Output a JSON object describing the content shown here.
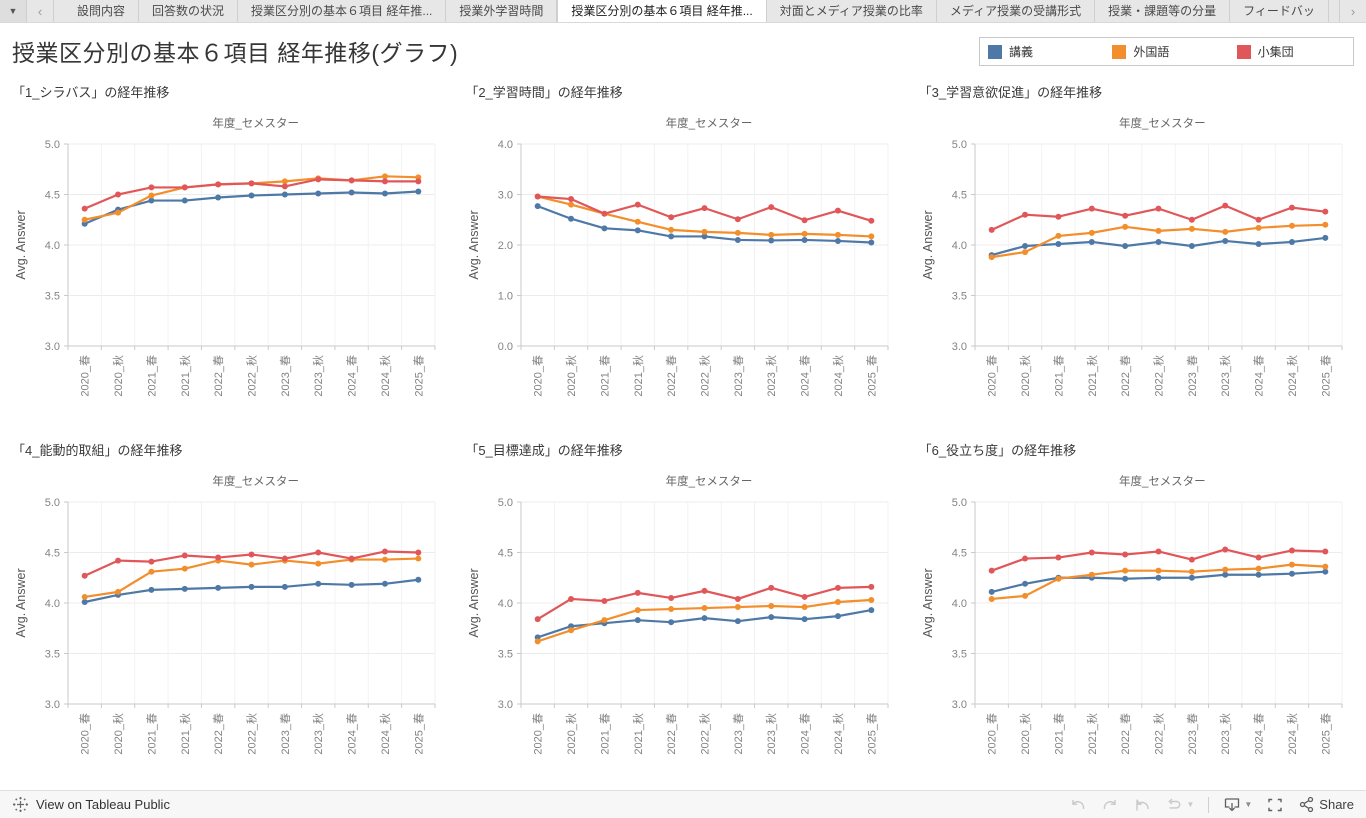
{
  "tab_bar": {
    "dropdown_icon": "▼",
    "prev_icon": "‹",
    "next_icon": "›",
    "tabs": [
      {
        "label": "設問内容",
        "active": false
      },
      {
        "label": "回答数の状況",
        "active": false
      },
      {
        "label": "授業区分別の基本６項目 経年推...",
        "active": false
      },
      {
        "label": "授業外学習時間",
        "active": false
      },
      {
        "label": "授業区分別の基本６項目 経年推...",
        "active": true
      },
      {
        "label": "対面とメディア授業の比率",
        "active": false
      },
      {
        "label": "メディア授業の受講形式",
        "active": false
      },
      {
        "label": "授業・課題等の分量",
        "active": false
      },
      {
        "label": "フィードバッ",
        "active": false
      }
    ]
  },
  "header": {
    "title": "授業区分別の基本６項目 経年推移(グラフ)"
  },
  "legend": {
    "items": [
      {
        "label": "講義",
        "color": "#4e79a7"
      },
      {
        "label": "外国語",
        "color": "#f28e2b"
      },
      {
        "label": "小集団",
        "color": "#e15759"
      }
    ]
  },
  "chart_data": [
    {
      "type": "line",
      "title": "「1_シラバス」の経年推移",
      "xlabel": "年度_セメスター",
      "ylabel": "Avg. Answer",
      "ylim": [
        3.0,
        5.0
      ],
      "yticks": [
        3.0,
        3.5,
        4.0,
        4.5,
        5.0
      ],
      "grid": true,
      "categories": [
        "2020_春",
        "2020_秋",
        "2021_春",
        "2021_秋",
        "2022_春",
        "2022_秋",
        "2023_春",
        "2023_秋",
        "2024_春",
        "2024_秋",
        "2025_春"
      ],
      "series": [
        {
          "name": "講義",
          "color": "#4e79a7",
          "values": [
            4.21,
            4.35,
            4.44,
            4.44,
            4.47,
            4.49,
            4.5,
            4.51,
            4.52,
            4.51,
            4.53
          ]
        },
        {
          "name": "外国語",
          "color": "#f28e2b",
          "values": [
            4.25,
            4.32,
            4.49,
            4.57,
            4.6,
            4.61,
            4.63,
            4.66,
            4.64,
            4.68,
            4.67
          ]
        },
        {
          "name": "小集団",
          "color": "#e15759",
          "values": [
            4.36,
            4.5,
            4.57,
            4.57,
            4.6,
            4.61,
            4.58,
            4.65,
            4.64,
            4.63,
            4.63
          ]
        }
      ]
    },
    {
      "type": "line",
      "title": "「2_学習時間」の経年推移",
      "xlabel": "年度_セメスター",
      "ylabel": "Avg. Answer",
      "ylim": [
        0.0,
        4.0
      ],
      "yticks": [
        0.0,
        1.0,
        2.0,
        3.0,
        4.0
      ],
      "grid": true,
      "categories": [
        "2020_春",
        "2020_秋",
        "2021_春",
        "2021_秋",
        "2022_春",
        "2022_秋",
        "2023_春",
        "2023_秋",
        "2024_春",
        "2024_秋",
        "2025_春"
      ],
      "series": [
        {
          "name": "講義",
          "color": "#4e79a7",
          "values": [
            2.77,
            2.52,
            2.33,
            2.29,
            2.17,
            2.17,
            2.1,
            2.09,
            2.1,
            2.08,
            2.05
          ]
        },
        {
          "name": "外国語",
          "color": "#f28e2b",
          "values": [
            2.96,
            2.8,
            2.62,
            2.46,
            2.3,
            2.26,
            2.24,
            2.2,
            2.22,
            2.2,
            2.17
          ]
        },
        {
          "name": "小集団",
          "color": "#e15759",
          "values": [
            2.96,
            2.91,
            2.62,
            2.8,
            2.55,
            2.73,
            2.51,
            2.75,
            2.49,
            2.68,
            2.48
          ]
        }
      ]
    },
    {
      "type": "line",
      "title": "「3_学習意欲促進」の経年推移",
      "xlabel": "年度_セメスター",
      "ylabel": "Avg. Answer",
      "ylim": [
        3.0,
        5.0
      ],
      "yticks": [
        3.0,
        3.5,
        4.0,
        4.5,
        5.0
      ],
      "grid": true,
      "categories": [
        "2020_春",
        "2020_秋",
        "2021_春",
        "2021_秋",
        "2022_春",
        "2022_秋",
        "2023_春",
        "2023_秋",
        "2024_春",
        "2024_秋",
        "2025_春"
      ],
      "series": [
        {
          "name": "講義",
          "color": "#4e79a7",
          "values": [
            3.9,
            3.99,
            4.01,
            4.03,
            3.99,
            4.03,
            3.99,
            4.04,
            4.01,
            4.03,
            4.07
          ]
        },
        {
          "name": "外国語",
          "color": "#f28e2b",
          "values": [
            3.88,
            3.93,
            4.09,
            4.12,
            4.18,
            4.14,
            4.16,
            4.13,
            4.17,
            4.19,
            4.2
          ]
        },
        {
          "name": "小集団",
          "color": "#e15759",
          "values": [
            4.15,
            4.3,
            4.28,
            4.36,
            4.29,
            4.36,
            4.25,
            4.39,
            4.25,
            4.37,
            4.33
          ]
        }
      ]
    },
    {
      "type": "line",
      "title": "「4_能動的取組」の経年推移",
      "xlabel": "年度_セメスター",
      "ylabel": "Avg. Answer",
      "ylim": [
        3.0,
        5.0
      ],
      "yticks": [
        3.0,
        3.5,
        4.0,
        4.5,
        5.0
      ],
      "grid": true,
      "categories": [
        "2020_春",
        "2020_秋",
        "2021_春",
        "2021_秋",
        "2022_春",
        "2022_秋",
        "2023_春",
        "2023_秋",
        "2024_春",
        "2024_秋",
        "2025_春"
      ],
      "series": [
        {
          "name": "講義",
          "color": "#4e79a7",
          "values": [
            4.01,
            4.08,
            4.13,
            4.14,
            4.15,
            4.16,
            4.16,
            4.19,
            4.18,
            4.19,
            4.23
          ]
        },
        {
          "name": "外国語",
          "color": "#f28e2b",
          "values": [
            4.06,
            4.11,
            4.31,
            4.34,
            4.42,
            4.38,
            4.42,
            4.39,
            4.43,
            4.43,
            4.44
          ]
        },
        {
          "name": "小集団",
          "color": "#e15759",
          "values": [
            4.27,
            4.42,
            4.41,
            4.47,
            4.45,
            4.48,
            4.44,
            4.5,
            4.44,
            4.51,
            4.5
          ]
        }
      ]
    },
    {
      "type": "line",
      "title": "「5_目標達成」の経年推移",
      "xlabel": "年度_セメスター",
      "ylabel": "Avg. Answer",
      "ylim": [
        3.0,
        5.0
      ],
      "yticks": [
        3.0,
        3.5,
        4.0,
        4.5,
        5.0
      ],
      "grid": true,
      "categories": [
        "2020_春",
        "2020_秋",
        "2021_春",
        "2021_秋",
        "2022_春",
        "2022_秋",
        "2023_春",
        "2023_秋",
        "2024_春",
        "2024_秋",
        "2025_春"
      ],
      "series": [
        {
          "name": "講義",
          "color": "#4e79a7",
          "values": [
            3.66,
            3.77,
            3.8,
            3.83,
            3.81,
            3.85,
            3.82,
            3.86,
            3.84,
            3.87,
            3.93
          ]
        },
        {
          "name": "外国語",
          "color": "#f28e2b",
          "values": [
            3.62,
            3.73,
            3.83,
            3.93,
            3.94,
            3.95,
            3.96,
            3.97,
            3.96,
            4.01,
            4.03
          ]
        },
        {
          "name": "小集団",
          "color": "#e15759",
          "values": [
            3.84,
            4.04,
            4.02,
            4.1,
            4.05,
            4.12,
            4.04,
            4.15,
            4.06,
            4.15,
            4.16
          ]
        }
      ]
    },
    {
      "type": "line",
      "title": "「6_役立ち度」の経年推移",
      "xlabel": "年度_セメスター",
      "ylabel": "Avg. Answer",
      "ylim": [
        3.0,
        5.0
      ],
      "yticks": [
        3.0,
        3.5,
        4.0,
        4.5,
        5.0
      ],
      "grid": true,
      "categories": [
        "2020_春",
        "2020_秋",
        "2021_春",
        "2021_秋",
        "2022_春",
        "2022_秋",
        "2023_春",
        "2023_秋",
        "2024_春",
        "2024_秋",
        "2025_春"
      ],
      "series": [
        {
          "name": "講義",
          "color": "#4e79a7",
          "values": [
            4.11,
            4.19,
            4.25,
            4.25,
            4.24,
            4.25,
            4.25,
            4.28,
            4.28,
            4.29,
            4.31
          ]
        },
        {
          "name": "外国語",
          "color": "#f28e2b",
          "values": [
            4.04,
            4.07,
            4.24,
            4.28,
            4.32,
            4.32,
            4.31,
            4.33,
            4.34,
            4.38,
            4.36
          ]
        },
        {
          "name": "小集団",
          "color": "#e15759",
          "values": [
            4.32,
            4.44,
            4.45,
            4.5,
            4.48,
            4.51,
            4.43,
            4.53,
            4.45,
            4.52,
            4.51
          ]
        }
      ]
    }
  ],
  "footer": {
    "view_label": "View on Tableau Public",
    "share_label": "Share"
  },
  "colors": {
    "series_blue": "#4e79a7",
    "series_orange": "#f28e2b",
    "series_red": "#e15759",
    "grid_line": "#ececec",
    "axis_line": "#c9c9c9"
  }
}
